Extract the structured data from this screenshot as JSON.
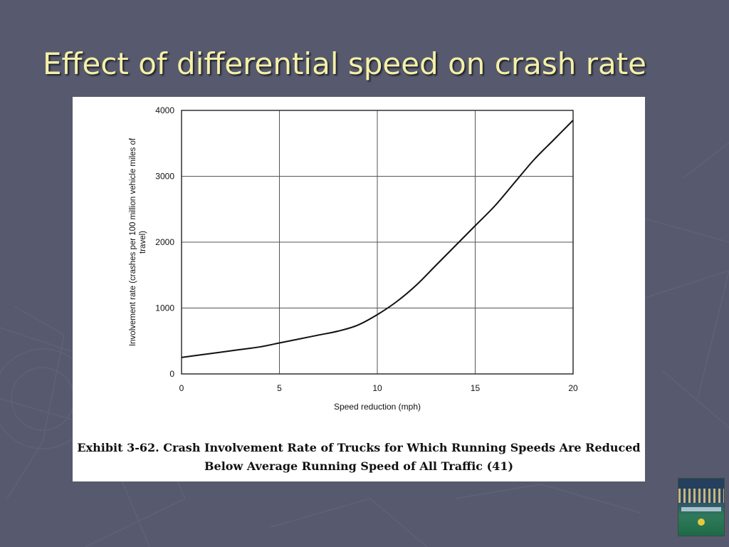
{
  "slide": {
    "title": "Effect of differential speed on crash rate"
  },
  "caption": {
    "line1": "Exhibit 3-62.  Crash Involvement Rate of Trucks for Which Running Speeds Are Reduced",
    "line2": "Below Average Running Speed of All Traffic (41)"
  },
  "thumbnail_icon": "city-logo-icon",
  "colors": {
    "background": "#575a6e",
    "title": "#f4f0a8",
    "curve": "#111111"
  },
  "chart_data": {
    "type": "line",
    "title": "",
    "xlabel": "Speed reduction (mph)",
    "ylabel": "Involvement rate (crashes per 100 million vehicle miles of travel)",
    "xlim": [
      0,
      20
    ],
    "ylim": [
      0,
      4000
    ],
    "xticks": [
      0,
      5,
      10,
      15,
      20
    ],
    "yticks": [
      0,
      1000,
      2000,
      3000,
      4000
    ],
    "grid": true,
    "series": [
      {
        "x": [
          0,
          1,
          2,
          3,
          4,
          5,
          6,
          7,
          8,
          9,
          10,
          11,
          12,
          13,
          14,
          15,
          16,
          17,
          18,
          19,
          20
        ],
        "values": [
          250,
          290,
          330,
          370,
          410,
          470,
          530,
          590,
          650,
          740,
          900,
          1100,
          1350,
          1650,
          1950,
          2250,
          2550,
          2900,
          3250,
          3550,
          3850
        ]
      }
    ]
  }
}
